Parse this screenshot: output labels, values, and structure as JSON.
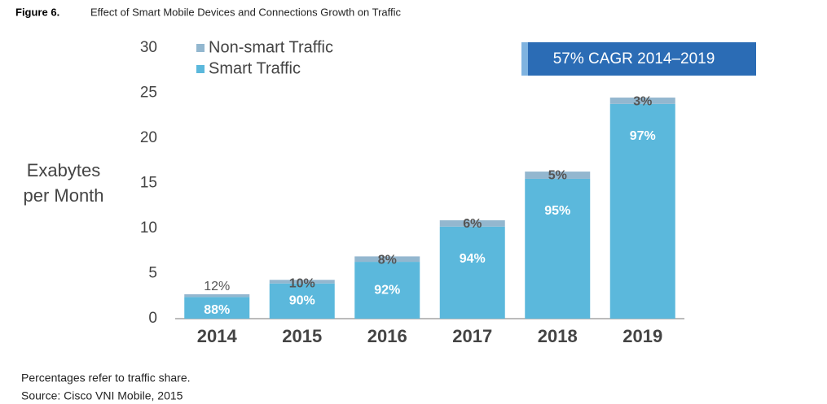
{
  "caption": {
    "label": "Figure 6.",
    "text": "Effect of Smart Mobile Devices and Connections Growth on Traffic"
  },
  "chart_data": {
    "type": "stacked-bar",
    "y_label": [
      "Exabytes",
      "per Month"
    ],
    "annotation": "57% CAGR 2014–2019",
    "categories": [
      "2014",
      "2015",
      "2016",
      "2017",
      "2018",
      "2019"
    ],
    "series": [
      {
        "name": "Smart Traffic",
        "color": "#5bb8dc",
        "values": [
          2.4,
          3.9,
          6.3,
          10.2,
          15.5,
          23.8
        ],
        "share_labels": [
          "88%",
          "90%",
          "92%",
          "94%",
          "95%",
          "97%"
        ]
      },
      {
        "name": "Non-smart Traffic",
        "color": "#93b7cf",
        "values": [
          0.3,
          0.4,
          0.6,
          0.7,
          0.8,
          0.7
        ],
        "share_labels": [
          "12%",
          "10%",
          "8%",
          "6%",
          "5%",
          "3%"
        ]
      }
    ],
    "ylim": [
      0,
      30
    ],
    "yticks": [
      0,
      5,
      10,
      15,
      20,
      25,
      30
    ],
    "grid": false
  },
  "notes": [
    "Percentages refer to traffic share.",
    "Source: Cisco VNI Mobile, 2015"
  ]
}
